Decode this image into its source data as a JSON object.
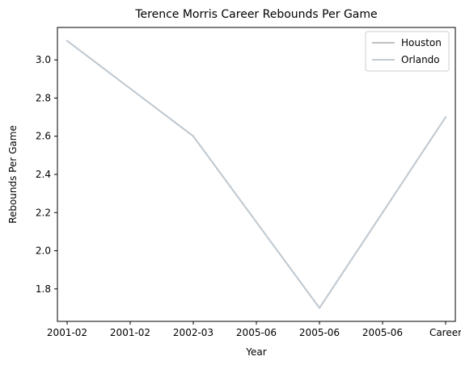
{
  "chart_data": {
    "type": "line",
    "title": "Terence Morris Career Rebounds Per Game",
    "xlabel": "Year",
    "ylabel": "Rebounds Per Game",
    "categories": [
      "2001-02",
      "2001-02",
      "2002-03",
      "2005-06",
      "2005-06",
      "2005-06",
      "Career"
    ],
    "series": [
      {
        "name": "Houston",
        "color": "#bfbfbf",
        "values": [
          3.1,
          2.85,
          2.6,
          2.15,
          1.7,
          2.2,
          2.7
        ]
      },
      {
        "name": "Orlando",
        "color": "#c2cbd3",
        "values": [
          3.1,
          2.85,
          2.6,
          2.15,
          1.7,
          2.2,
          2.7
        ]
      }
    ],
    "ylim": [
      1.63,
      3.17
    ],
    "yticks": [
      1.8,
      2.0,
      2.2,
      2.4,
      2.6,
      2.8,
      3.0
    ],
    "ytick_labels": [
      "1.8",
      "2.0",
      "2.2",
      "2.4",
      "2.6",
      "2.8",
      "3.0"
    ],
    "grid": false,
    "legend_position": "top-right"
  }
}
